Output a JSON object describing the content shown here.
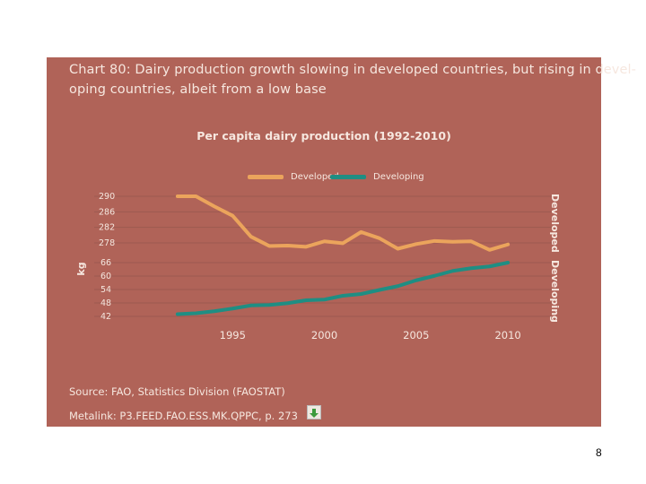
{
  "title_lines": [
    "Chart 80: Dairy production growth slowing in developed countries, but rising in devel-",
    "oping countries, albeit from a low base"
  ],
  "page_number": "8",
  "source": "Source: FAO, Statistics Division (FAOSTAT)",
  "metalink": "Metalink: P3.FEED.FAO.ESS.MK.QPPC, p. 273",
  "colors": {
    "background": "#b06358",
    "developed": "#eba45c",
    "developing": "#1f8e83",
    "text": "#f6e7df",
    "grid": "#9c5a50"
  },
  "chart_data": {
    "type": "line",
    "title": "Per capita dairy production (1992-2010)",
    "ylabel": "kg",
    "right_labels": [
      "Developed",
      "Developing"
    ],
    "x": [
      1992,
      1993,
      1994,
      1995,
      1996,
      1997,
      1998,
      1999,
      2000,
      2001,
      2002,
      2003,
      2004,
      2005,
      2006,
      2007,
      2008,
      2009,
      2010
    ],
    "xticks": [
      "1995",
      "2000",
      "2005",
      "2010"
    ],
    "yticks_developed": [
      "290",
      "286",
      "282",
      "278"
    ],
    "yticks_developing": [
      "66",
      "60",
      "54",
      "48",
      "42"
    ],
    "ylim_developed": [
      278,
      290
    ],
    "ylim_developing": [
      42,
      66
    ],
    "series": [
      {
        "name": "Developed",
        "values": [
          290,
          290,
          287.4,
          285.0,
          279.6,
          277.2,
          277.3,
          277.0,
          278.4,
          277.9,
          280.8,
          279.2,
          276.5,
          277.7,
          278.5,
          278.3,
          278.4,
          276.2,
          277.6
        ]
      },
      {
        "name": "Developing",
        "values": [
          43.0,
          43.4,
          44.3,
          45.5,
          46.9,
          47.1,
          47.9,
          49.2,
          49.5,
          51.2,
          52.0,
          53.8,
          55.5,
          58.1,
          60.1,
          62.3,
          63.5,
          64.3,
          66.0
        ]
      }
    ]
  }
}
